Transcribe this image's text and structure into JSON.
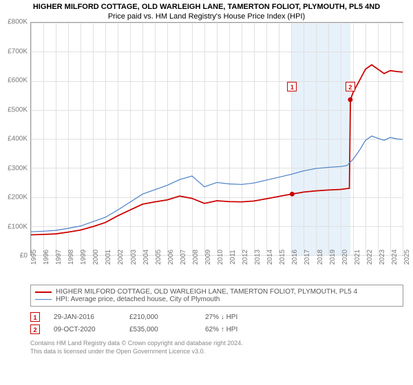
{
  "title": {
    "line1": "HIGHER MILFORD COTTAGE, OLD WARLEIGH LANE, TAMERTON FOLIOT, PLYMOUTH, PL5 4ND",
    "line2": "Price paid vs. HM Land Registry's House Price Index (HPI)"
  },
  "chart": {
    "type": "line",
    "background_color": "#ffffff",
    "grid_color": "#e0e0e0",
    "band_color": "#d3e6f5",
    "xlim": [
      1995,
      2025
    ],
    "ylim": [
      0,
      800000
    ],
    "ytick_step": 100000,
    "y_ticks": [
      {
        "v": 0,
        "label": "£0"
      },
      {
        "v": 100000,
        "label": "£100K"
      },
      {
        "v": 200000,
        "label": "£200K"
      },
      {
        "v": 300000,
        "label": "£300K"
      },
      {
        "v": 400000,
        "label": "£400K"
      },
      {
        "v": 500000,
        "label": "£500K"
      },
      {
        "v": 600000,
        "label": "£600K"
      },
      {
        "v": 700000,
        "label": "£700K"
      },
      {
        "v": 800000,
        "label": "£800K"
      }
    ],
    "x_ticks": [
      1995,
      1996,
      1997,
      1998,
      1999,
      2000,
      2001,
      2002,
      2003,
      2004,
      2005,
      2006,
      2007,
      2008,
      2009,
      2010,
      2011,
      2012,
      2013,
      2014,
      2015,
      2016,
      2017,
      2018,
      2019,
      2020,
      2021,
      2022,
      2023,
      2024,
      2025
    ],
    "bands": [
      {
        "from": 2016.08,
        "to": 2020.77
      }
    ],
    "series": [
      {
        "id": "property",
        "label": "HIGHER MILFORD COTTAGE, OLD WARLEIGH LANE, TAMERTON FOLIOT, PLYMOUTH, PL5 4",
        "color": "#cc0000",
        "width": 1.8,
        "points": [
          [
            1995,
            70000
          ],
          [
            1996,
            71000
          ],
          [
            1997,
            73000
          ],
          [
            1998,
            79000
          ],
          [
            1999,
            86000
          ],
          [
            2000,
            98000
          ],
          [
            2001,
            112000
          ],
          [
            2002,
            135000
          ],
          [
            2003,
            155000
          ],
          [
            2004,
            175000
          ],
          [
            2005,
            183000
          ],
          [
            2006,
            190000
          ],
          [
            2007,
            203000
          ],
          [
            2008,
            195000
          ],
          [
            2009,
            178000
          ],
          [
            2010,
            187000
          ],
          [
            2011,
            184000
          ],
          [
            2012,
            183000
          ],
          [
            2013,
            186000
          ],
          [
            2014,
            194000
          ],
          [
            2015,
            202000
          ],
          [
            2016,
            210000
          ],
          [
            2016.5,
            213000
          ],
          [
            2017,
            217000
          ],
          [
            2018,
            221000
          ],
          [
            2019,
            224000
          ],
          [
            2020,
            226000
          ],
          [
            2020.7,
            230000
          ],
          [
            2020.78,
            535000
          ],
          [
            2021,
            560000
          ],
          [
            2021.5,
            600000
          ],
          [
            2022,
            640000
          ],
          [
            2022.5,
            655000
          ],
          [
            2023,
            640000
          ],
          [
            2023.5,
            625000
          ],
          [
            2024,
            635000
          ],
          [
            2024.5,
            632000
          ],
          [
            2025,
            630000
          ]
        ]
      },
      {
        "id": "hpi",
        "label": "HPI: Average price, detached house, City of Plymouth",
        "color": "#4a7fc4",
        "width": 1.2,
        "points": [
          [
            1995,
            80000
          ],
          [
            1996,
            82000
          ],
          [
            1997,
            85000
          ],
          [
            1998,
            92000
          ],
          [
            1999,
            100000
          ],
          [
            2000,
            115000
          ],
          [
            2001,
            130000
          ],
          [
            2002,
            155000
          ],
          [
            2003,
            182000
          ],
          [
            2004,
            210000
          ],
          [
            2005,
            225000
          ],
          [
            2006,
            240000
          ],
          [
            2007,
            260000
          ],
          [
            2008,
            272000
          ],
          [
            2009,
            235000
          ],
          [
            2010,
            250000
          ],
          [
            2011,
            245000
          ],
          [
            2012,
            243000
          ],
          [
            2013,
            248000
          ],
          [
            2014,
            258000
          ],
          [
            2015,
            268000
          ],
          [
            2016,
            278000
          ],
          [
            2017,
            290000
          ],
          [
            2018,
            298000
          ],
          [
            2019,
            302000
          ],
          [
            2020,
            305000
          ],
          [
            2020.5,
            308000
          ],
          [
            2021,
            330000
          ],
          [
            2021.5,
            360000
          ],
          [
            2022,
            395000
          ],
          [
            2022.5,
            410000
          ],
          [
            2023,
            402000
          ],
          [
            2023.5,
            395000
          ],
          [
            2024,
            405000
          ],
          [
            2024.5,
            400000
          ],
          [
            2025,
            398000
          ]
        ]
      }
    ],
    "sale_markers": [
      {
        "n": "1",
        "x": 2016.08,
        "y": 210000,
        "box_y": 580000
      },
      {
        "n": "2",
        "x": 2020.77,
        "y": 535000,
        "box_y": 580000
      }
    ]
  },
  "legend": {
    "rows": [
      {
        "color": "#cc0000",
        "width": 2,
        "label": "HIGHER MILFORD COTTAGE, OLD WARLEIGH LANE, TAMERTON FOLIOT, PLYMOUTH, PL5 4"
      },
      {
        "color": "#4a7fc4",
        "width": 1.2,
        "label": "HPI: Average price, detached house, City of Plymouth"
      }
    ]
  },
  "sales": [
    {
      "n": "1",
      "date": "29-JAN-2016",
      "price": "£210,000",
      "delta": "27% ↓ HPI"
    },
    {
      "n": "2",
      "date": "09-OCT-2020",
      "price": "£535,000",
      "delta": "62% ↑ HPI"
    }
  ],
  "footer": {
    "line1": "Contains HM Land Registry data © Crown copyright and database right 2024.",
    "line2": "This data is licensed under the Open Government Licence v3.0."
  }
}
